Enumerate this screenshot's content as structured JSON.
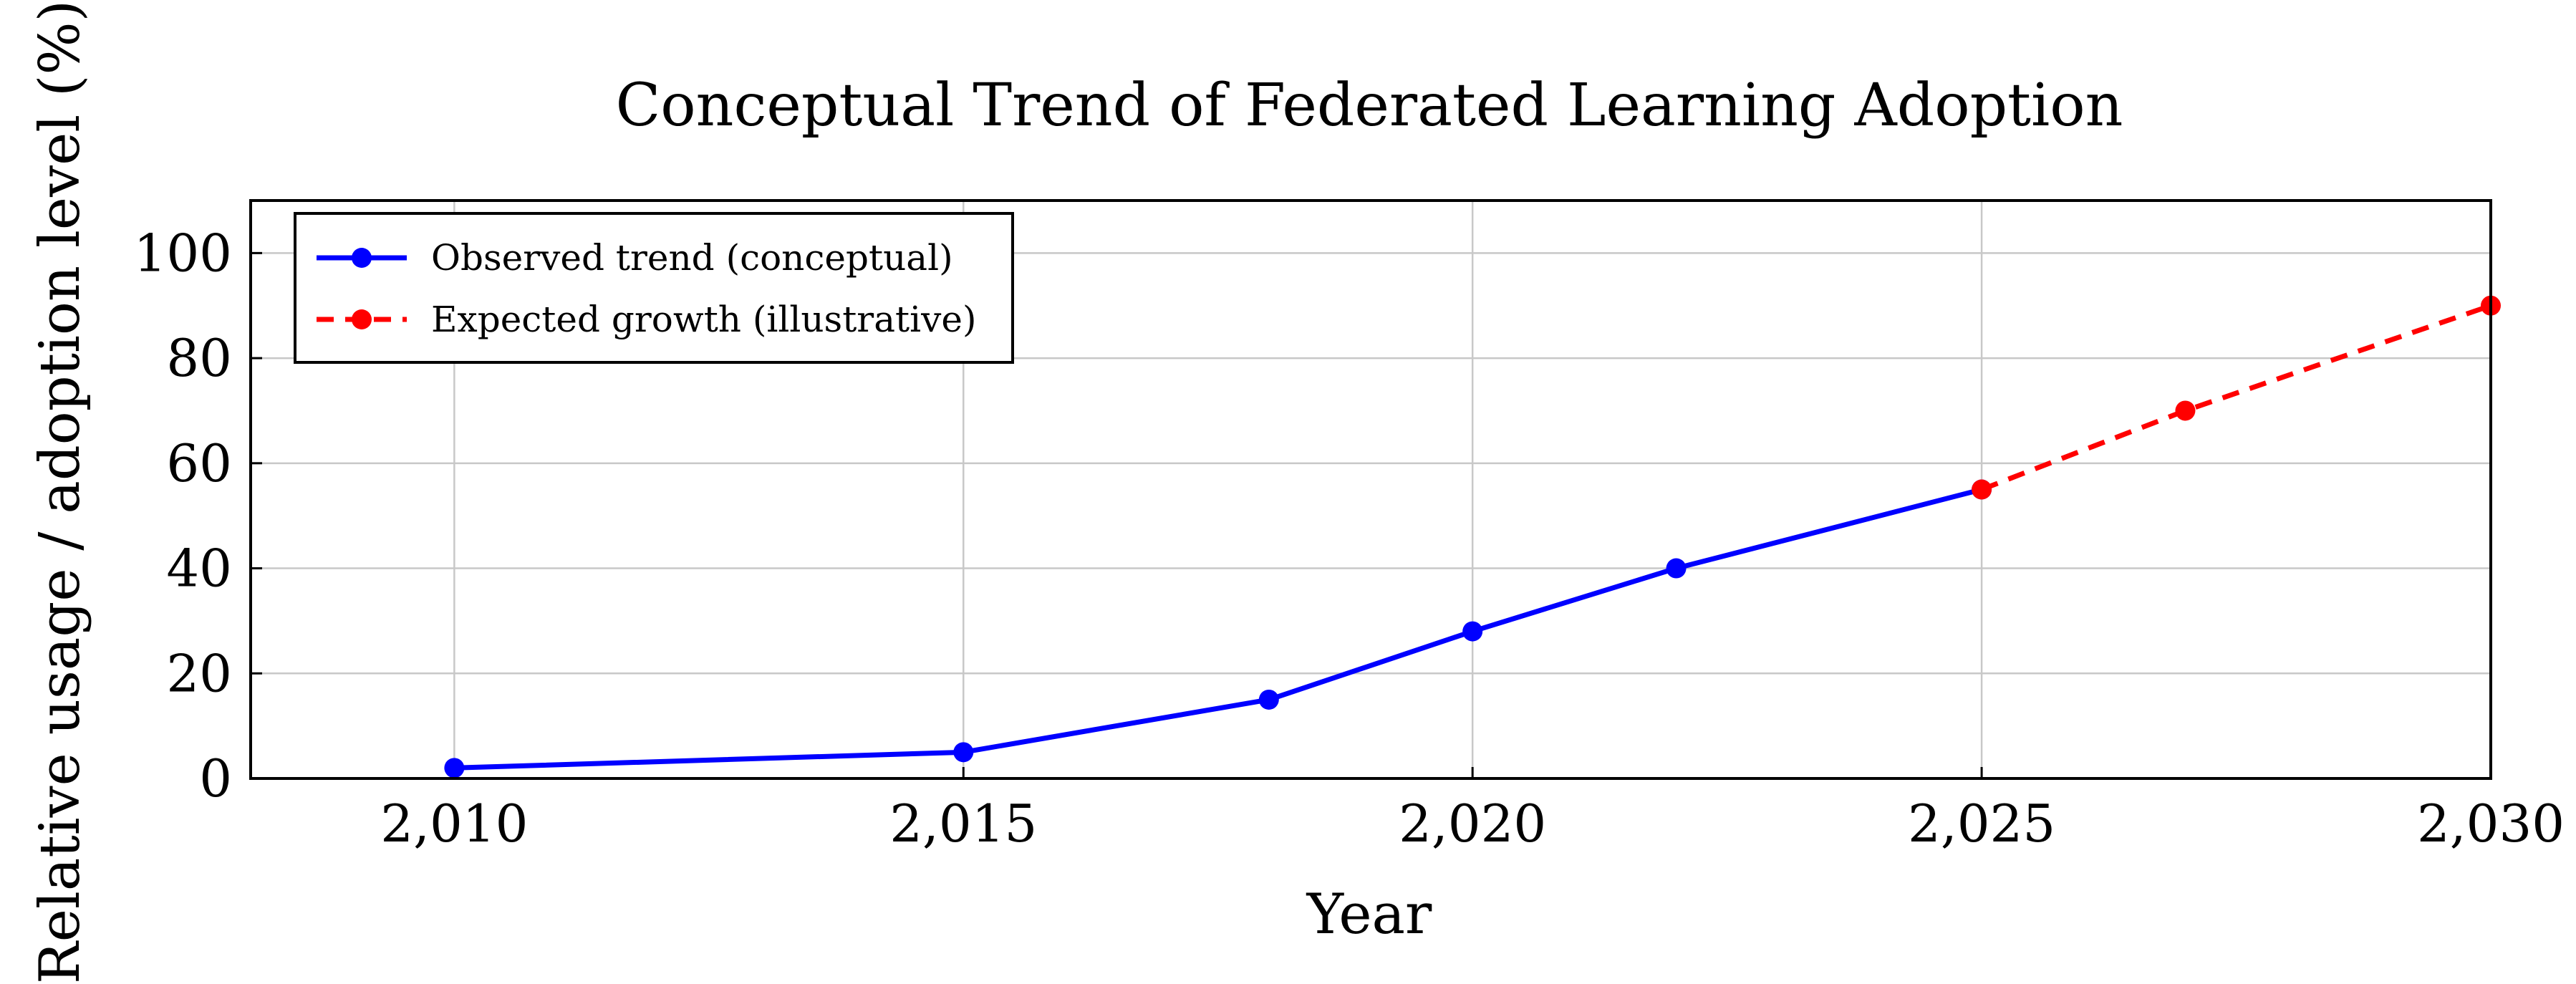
{
  "chart_data": {
    "type": "line",
    "title": "Conceptual Trend of Federated Learning Adoption",
    "xlabel": "Year",
    "ylabel": "Relative usage / adoption level (%)",
    "xlim": [
      2008,
      2030
    ],
    "ylim": [
      0,
      110
    ],
    "x_ticks": [
      2010,
      2015,
      2020,
      2025,
      2030
    ],
    "x_tick_labels": [
      "2,010",
      "2,015",
      "2,020",
      "2,025",
      "2,030"
    ],
    "y_ticks": [
      0,
      20,
      40,
      60,
      80,
      100
    ],
    "y_tick_labels": [
      "0",
      "20",
      "40",
      "60",
      "80",
      "100"
    ],
    "grid": true,
    "legend_position": "top-left",
    "series": [
      {
        "name": "Observed trend (conceptual)",
        "color": "#0000ff",
        "line_style": "solid",
        "marker": "circle",
        "x": [
          2010,
          2015,
          2018,
          2020,
          2022,
          2025
        ],
        "y": [
          2,
          5,
          15,
          28,
          40,
          55
        ]
      },
      {
        "name": "Expected growth (illustrative)",
        "color": "#ff0000",
        "line_style": "dashed",
        "marker": "circle",
        "x": [
          2025,
          2027,
          2030
        ],
        "y": [
          55,
          70,
          90
        ]
      }
    ]
  }
}
